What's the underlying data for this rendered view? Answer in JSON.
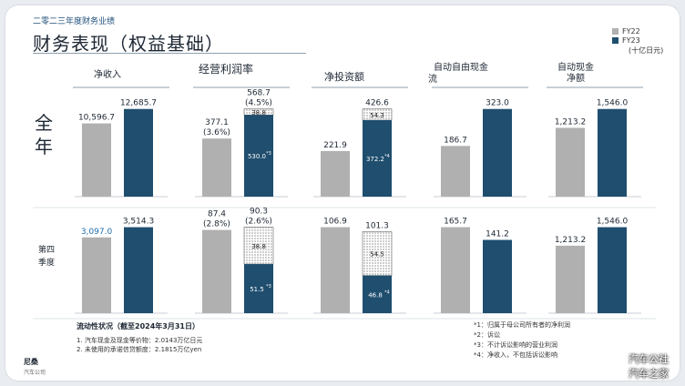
{
  "header": {
    "subtitle": "二零二三年度财务业绩",
    "title": "财务表现（权益基础）"
  },
  "legend": {
    "fy22_label": "FY22",
    "fy23_label": "FY23",
    "unit": "(十亿日元)"
  },
  "row_labels": {
    "full_year": "全年",
    "q4": "第四季度"
  },
  "colors": {
    "fy22": "#b0b0b0",
    "fy23": "#1f4e6e",
    "text": "#1d2733",
    "q4_fy22_text": "#1f6fb0"
  },
  "footer": {
    "title": "流动性状况（截至2024年3月31日）",
    "lines": [
      "1. 汽车现金及现金等价物：2.0143万亿日元",
      "2. 未使用的承诺信贷额度：2.1815万亿yen"
    ],
    "notes": [
      "*1：归属于母公司所有者的净利润",
      "*2：诉讼",
      "*3：不计诉讼影响的营业利润",
      "*4：净收入，不包括诉讼影响"
    ]
  },
  "company": {
    "name": "尼桑",
    "sub": "汽车公司"
  },
  "watermark": [
    "汽车公社",
    "汽车之家"
  ],
  "chart_data": [
    {
      "type": "bar",
      "panel": "净收入",
      "row": "全年",
      "categories": [
        "FY22",
        "FY23"
      ],
      "values": [
        10596.7,
        12685.7
      ],
      "labels": [
        "10,596.7",
        "12,685.7"
      ]
    },
    {
      "type": "bar",
      "panel": "经营利润率",
      "row": "全年",
      "categories": [
        "FY22",
        "FY23"
      ],
      "values": [
        377.1,
        568.7
      ],
      "labels": [
        "377.1\n(3.6%)",
        "568.7\n(4.5%)"
      ],
      "stack": {
        "solid": 530.0,
        "solid_label": "530.0",
        "solid_note": "*3",
        "hatched": 38.8,
        "hatched_label": "38.8"
      }
    },
    {
      "type": "bar",
      "panel": "净投资额",
      "row": "全年",
      "categories": [
        "FY22",
        "FY23"
      ],
      "values": [
        221.9,
        426.6
      ],
      "labels": [
        "221.9",
        "426.6"
      ],
      "stack": {
        "solid": 372.2,
        "solid_label": "372.2",
        "solid_note": "*4",
        "hatched": 54.3,
        "hatched_label": "54.3"
      }
    },
    {
      "type": "bar",
      "panel": "自动自由现金流",
      "row": "全年",
      "categories": [
        "FY22",
        "FY23"
      ],
      "values": [
        186.7,
        323.0
      ],
      "labels": [
        "186.7",
        "323.0"
      ]
    },
    {
      "type": "bar",
      "panel": "自动现金净额",
      "row": "全年",
      "categories": [
        "FY22",
        "FY23"
      ],
      "values": [
        1213.2,
        1546.0
      ],
      "labels": [
        "1,213.2",
        "1,546.0"
      ]
    },
    {
      "type": "bar",
      "panel": "净收入",
      "row": "第四季度",
      "categories": [
        "FY22",
        "FY23"
      ],
      "values": [
        3097.0,
        3514.3
      ],
      "labels": [
        "3,097.0",
        "3,514.3"
      ]
    },
    {
      "type": "bar",
      "panel": "经营利润率",
      "row": "第四季度",
      "categories": [
        "FY22",
        "FY23"
      ],
      "values": [
        87.4,
        90.3
      ],
      "labels": [
        "87.4\n(2.8%)",
        "90.3\n(2.6%)"
      ],
      "stack": {
        "solid": 51.5,
        "solid_label": "51.5",
        "solid_note": "*3",
        "hatched": 38.8,
        "hatched_label": "38.8"
      }
    },
    {
      "type": "bar",
      "panel": "净投资额",
      "row": "第四季度",
      "categories": [
        "FY22",
        "FY23"
      ],
      "values": [
        106.9,
        101.3
      ],
      "labels": [
        "106.9",
        "101.3"
      ],
      "stack": {
        "solid": 46.8,
        "solid_label": "46.8",
        "solid_note": "*4",
        "hatched": 54.5,
        "hatched_label": "54.5"
      }
    },
    {
      "type": "bar",
      "panel": "自动自由现金流",
      "row": "第四季度",
      "categories": [
        "FY22",
        "FY23"
      ],
      "values": [
        165.7,
        141.2
      ],
      "labels": [
        "165.7",
        "141.2"
      ]
    },
    {
      "type": "bar",
      "panel": "自动现金净额",
      "row": "第四季度",
      "categories": [
        "FY22",
        "FY23"
      ],
      "values": [
        1213.2,
        1546.0
      ],
      "labels": [
        "1,213.2",
        "1,546.0"
      ]
    }
  ]
}
